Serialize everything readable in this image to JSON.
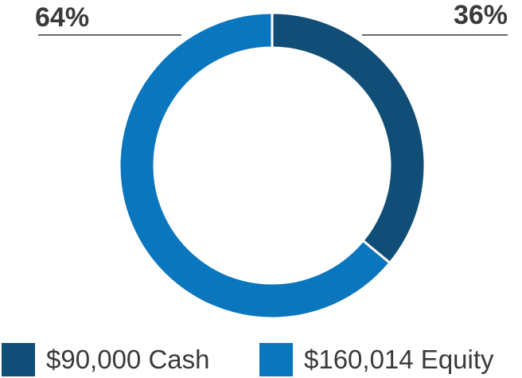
{
  "chart_data": {
    "type": "pie",
    "style": "donut",
    "title": "",
    "slices": [
      {
        "label": "$90,000 Cash",
        "value": 90000,
        "percent_label": "36%",
        "color": "#104e78"
      },
      {
        "label": "$160,014 Equity",
        "value": 160014,
        "percent_label": "64%",
        "color": "#0a76be"
      }
    ],
    "legend_position": "bottom"
  }
}
